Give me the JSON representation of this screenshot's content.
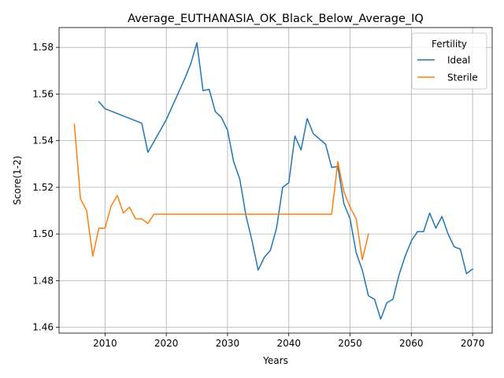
{
  "chart_data": {
    "type": "line",
    "title": "Average_EUTHANASIA_OK_Black_Below_Average_IQ",
    "xlabel": "Years",
    "ylabel": "Score(1-2)",
    "xlim": [
      2002.5,
      2073.2
    ],
    "ylim": [
      1.4575,
      1.5885
    ],
    "xticks": [
      2010,
      2020,
      2030,
      2040,
      2050,
      2060,
      2070
    ],
    "yticks": [
      1.46,
      1.48,
      1.5,
      1.52,
      1.54,
      1.56,
      1.58
    ],
    "ytick_labels": [
      "1.46",
      "1.48",
      "1.50",
      "1.52",
      "1.54",
      "1.56",
      "1.58"
    ],
    "grid": true,
    "legend": {
      "title": "Fertility",
      "placement": "top-right"
    },
    "series": [
      {
        "name": "Ideal",
        "color": "#1f77b4",
        "x": [
          2009,
          2010,
          2016,
          2017,
          2020,
          2023,
          2024,
          2025,
          2026,
          2027,
          2028,
          2029,
          2030,
          2031,
          2032,
          2033,
          2034,
          2035,
          2036,
          2037,
          2038,
          2039,
          2040,
          2041,
          2042,
          2043,
          2044,
          2046,
          2047,
          2048,
          2049,
          2050,
          2051,
          2052,
          2053,
          2054,
          2055,
          2056,
          2057,
          2058,
          2059,
          2060,
          2061,
          2062,
          2063,
          2064,
          2065,
          2066,
          2067,
          2068,
          2069,
          2070
        ],
        "y": [
          1.5567,
          1.5537,
          1.5475,
          1.535,
          1.549,
          1.5665,
          1.573,
          1.582,
          1.5615,
          1.562,
          1.5525,
          1.55,
          1.5445,
          1.531,
          1.5235,
          1.508,
          1.497,
          1.4845,
          1.49,
          1.493,
          1.5025,
          1.52,
          1.522,
          1.542,
          1.536,
          1.5495,
          1.543,
          1.5385,
          1.5285,
          1.529,
          1.513,
          1.5065,
          1.492,
          1.4845,
          1.4735,
          1.472,
          1.4635,
          1.4705,
          1.472,
          1.4825,
          1.4905,
          1.497,
          1.501,
          1.501,
          1.509,
          1.5025,
          1.5075,
          1.5,
          1.4945,
          1.4935,
          1.483,
          1.485
        ]
      },
      {
        "name": "Sterile",
        "color": "#ff7f0e",
        "x": [
          2005,
          2006,
          2007,
          2008,
          2009,
          2010,
          2011,
          2012,
          2013,
          2014,
          2015,
          2016,
          2017,
          2018,
          2047,
          2048,
          2049,
          2050,
          2051,
          2052,
          2053
        ],
        "y": [
          1.547,
          1.515,
          1.51,
          1.4905,
          1.5025,
          1.5025,
          1.512,
          1.5165,
          1.509,
          1.5115,
          1.5065,
          1.5065,
          1.5045,
          1.5085,
          1.5085,
          1.531,
          1.518,
          1.5115,
          1.5065,
          1.489,
          1.5
        ]
      }
    ]
  }
}
